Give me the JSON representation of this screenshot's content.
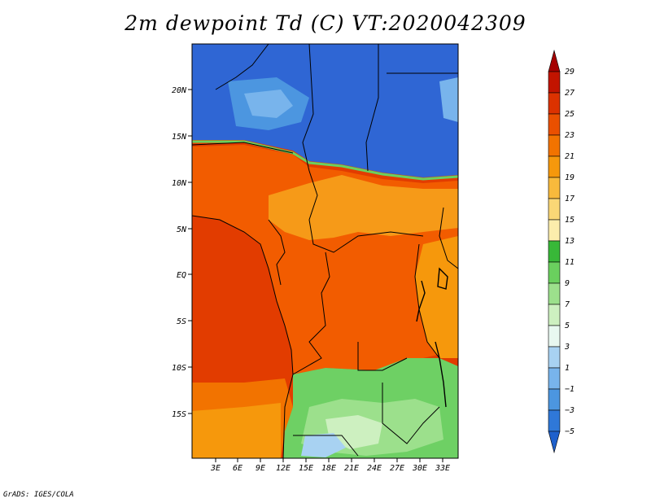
{
  "title": "2m dewpoint Td (C) VT:2020042309",
  "credit": "GrADS: IGES/COLA",
  "map": {
    "lon_ticks": [
      "3E",
      "6E",
      "9E",
      "12E",
      "15E",
      "18E",
      "21E",
      "24E",
      "27E",
      "30E",
      "33E"
    ],
    "lat_ticks": [
      "20N",
      "15N",
      "10N",
      "5N",
      "EQ",
      "5S",
      "10S",
      "15S"
    ]
  },
  "colorbar": {
    "labels": [
      "29",
      "27",
      "25",
      "23",
      "21",
      "19",
      "17",
      "15",
      "13",
      "11",
      "9",
      "7",
      "5",
      "3",
      "1",
      "−1",
      "−3",
      "−5"
    ],
    "colors": [
      "#a50000",
      "#c21400",
      "#dc3200",
      "#ea5000",
      "#f27300",
      "#f6980c",
      "#f8ba3c",
      "#fad776",
      "#fcedac",
      "#38b838",
      "#6ad05e",
      "#9ce08c",
      "#cdf0c0",
      "#e8f8f0",
      "#a8d2f2",
      "#78b4ec",
      "#4c96e0",
      "#2f78d8",
      "#1e60cc"
    ]
  },
  "colors": {
    "ocean_warm": "#e23c00",
    "humid_land": "#f25c00",
    "sahel": "#f69a18",
    "dry_north": "#2f66d4",
    "green_south": "#6ed064",
    "border": "#000000"
  }
}
